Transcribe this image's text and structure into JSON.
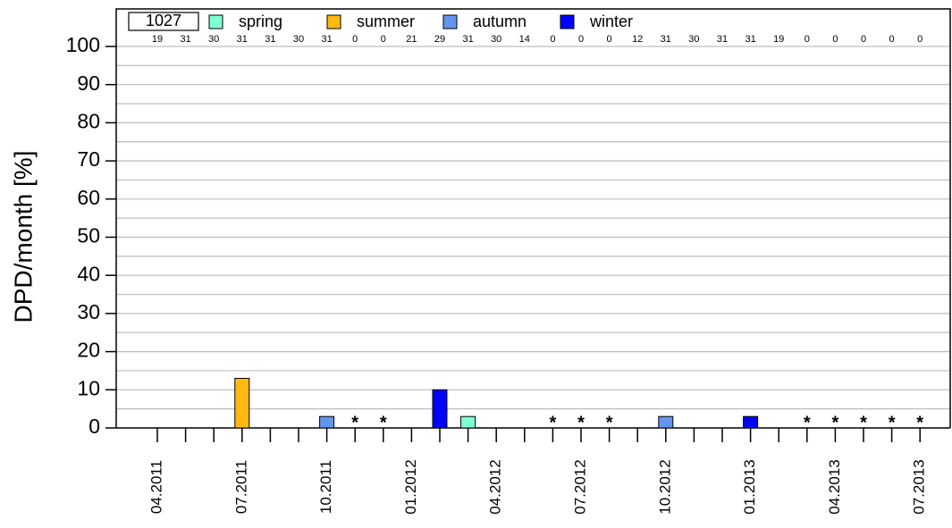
{
  "chart_data": {
    "type": "bar",
    "ylabel": "DPD/month [%]",
    "total_label": "1027",
    "categories": [
      "04.2011",
      null,
      null,
      "07.2011",
      null,
      null,
      "10.2011",
      null,
      null,
      "01.2012",
      null,
      null,
      "04.2012",
      null,
      null,
      "07.2012",
      null,
      null,
      "10.2012",
      null,
      null,
      "01.2013",
      null,
      null,
      "04.2013",
      null,
      null,
      "07.2013"
    ],
    "days": [
      19,
      31,
      30,
      31,
      31,
      30,
      31,
      0,
      0,
      21,
      29,
      31,
      30,
      14,
      0,
      0,
      0,
      12,
      31,
      30,
      31,
      31,
      19,
      0,
      0,
      0,
      0,
      0
    ],
    "no_data_marker": "*",
    "series": [
      {
        "name": "spring",
        "color": "#7fffd4",
        "values": [
          0,
          0,
          null,
          null,
          null,
          null,
          null,
          null,
          null,
          null,
          null,
          3,
          0,
          0,
          null,
          null,
          null,
          null,
          null,
          null,
          null,
          null,
          null,
          null,
          null,
          null,
          null,
          null
        ]
      },
      {
        "name": "summer",
        "color": "#ffb90f",
        "values": [
          null,
          null,
          0,
          13,
          0,
          null,
          null,
          null,
          null,
          null,
          null,
          null,
          null,
          null,
          null,
          null,
          null,
          null,
          null,
          null,
          null,
          null,
          null,
          null,
          null,
          null,
          null,
          null
        ]
      },
      {
        "name": "autumn",
        "color": "#6495ed",
        "values": [
          null,
          null,
          null,
          null,
          null,
          0,
          3,
          null,
          null,
          null,
          null,
          null,
          null,
          null,
          null,
          null,
          null,
          0,
          3,
          0,
          null,
          null,
          null,
          null,
          null,
          null,
          null,
          null
        ]
      },
      {
        "name": "winter",
        "color": "#0000ff",
        "values": [
          null,
          null,
          null,
          null,
          null,
          null,
          null,
          null,
          null,
          0,
          10,
          null,
          null,
          null,
          null,
          null,
          null,
          null,
          null,
          null,
          0,
          3,
          0,
          null,
          null,
          null,
          null,
          null
        ]
      }
    ],
    "ylim": [
      0,
      100
    ],
    "yticks": [
      0,
      10,
      20,
      30,
      40,
      50,
      60,
      70,
      80,
      90,
      100
    ],
    "minor_yticks": [
      5,
      15,
      25,
      35,
      45,
      55,
      65,
      75,
      85,
      95
    ],
    "grid": true
  }
}
